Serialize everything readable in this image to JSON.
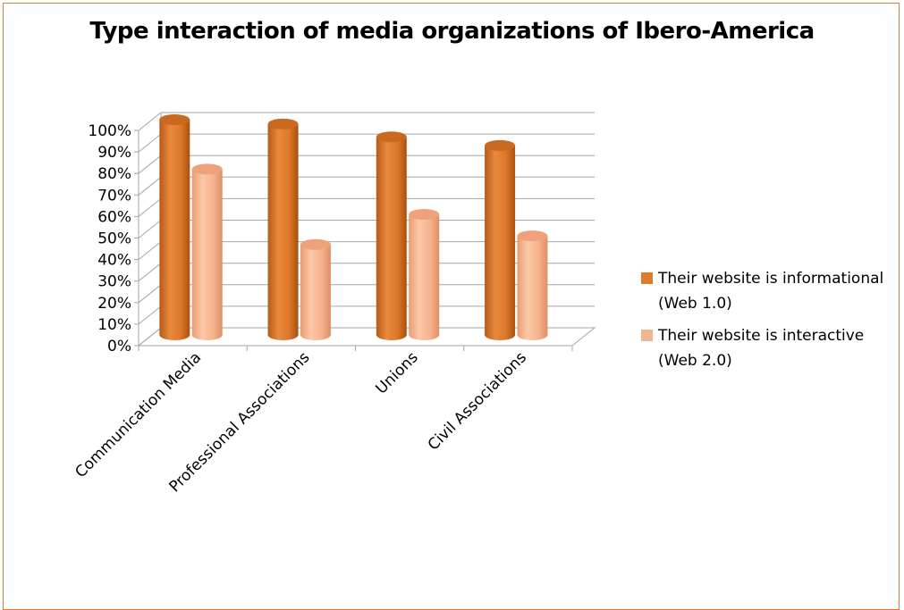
{
  "chart_data": {
    "type": "bar",
    "title": "Type interaction of media organizations of Ibero-America",
    "categories": [
      "Communication Media",
      "Professional Associations",
      "Unions",
      "Civil Associations"
    ],
    "series": [
      {
        "name": "Their website is informational (Web 1.0)",
        "values": [
          100,
          98,
          92,
          88
        ],
        "color": "#e07b2c"
      },
      {
        "name": "Their website is interactive (Web 2.0)",
        "values": [
          77,
          42,
          56,
          46
        ],
        "color": "#f4b48f"
      }
    ],
    "yticks": [
      "0%",
      "10%",
      "20%",
      "30%",
      "40%",
      "50%",
      "60%",
      "70%",
      "80%",
      "90%",
      "100%"
    ],
    "ylim": [
      0,
      100
    ],
    "legend_position": "right",
    "grid": true,
    "style": "3d-cylinder"
  },
  "colors": {
    "border": "#e2793a",
    "grid": "#a6a6a6"
  }
}
